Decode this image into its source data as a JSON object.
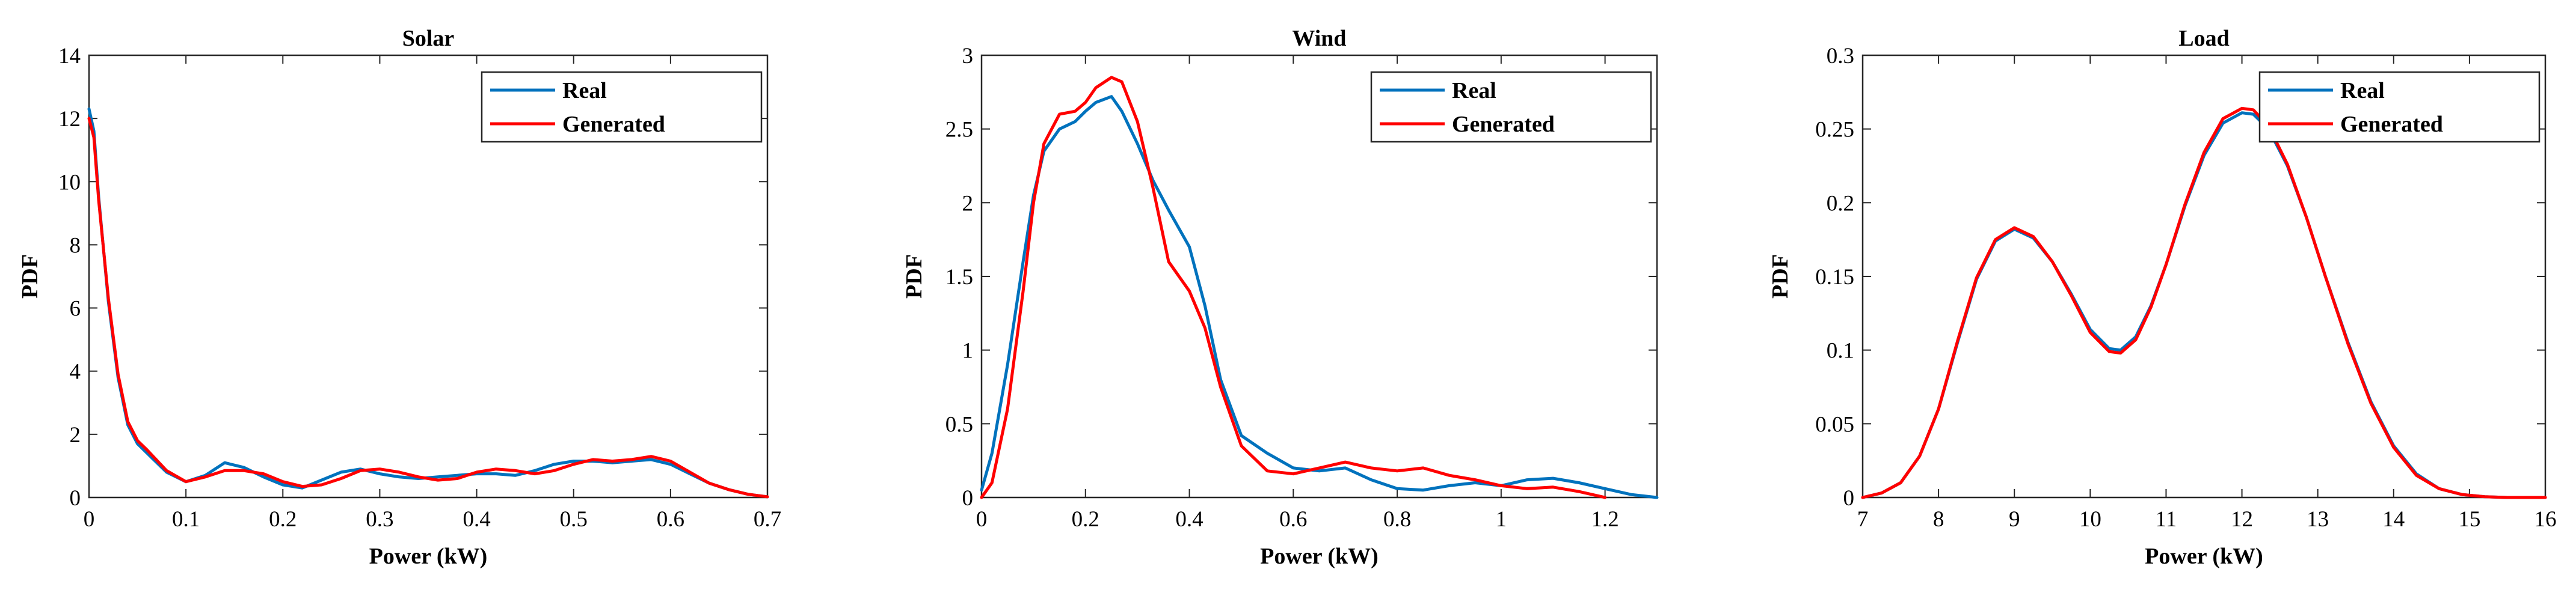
{
  "chart_data": [
    {
      "type": "line",
      "title": "Solar",
      "xlabel": "Power (kW)",
      "ylabel": "PDF",
      "xlim": [
        0,
        0.7
      ],
      "ylim": [
        0,
        14
      ],
      "xticks": [
        0,
        0.1,
        0.2,
        0.3,
        0.4,
        0.5,
        0.6,
        0.7
      ],
      "yticks": [
        0,
        2,
        4,
        6,
        8,
        10,
        12,
        14
      ],
      "xtick_labels": [
        "0",
        "0.1",
        "0.2",
        "0.3",
        "0.4",
        "0.5",
        "0.6",
        "0.7"
      ],
      "ytick_labels": [
        "0",
        "2",
        "4",
        "6",
        "8",
        "10",
        "12",
        "14"
      ],
      "grid": false,
      "legend_position": "top-right",
      "series": [
        {
          "name": "Real",
          "color": "#0072BD",
          "x": [
            0,
            0.005,
            0.01,
            0.02,
            0.03,
            0.04,
            0.05,
            0.06,
            0.08,
            0.1,
            0.12,
            0.14,
            0.16,
            0.18,
            0.2,
            0.22,
            0.24,
            0.26,
            0.28,
            0.3,
            0.32,
            0.34,
            0.36,
            0.38,
            0.4,
            0.42,
            0.44,
            0.46,
            0.48,
            0.5,
            0.52,
            0.54,
            0.56,
            0.58,
            0.6,
            0.62,
            0.64,
            0.66,
            0.68,
            0.7
          ],
          "y": [
            12.3,
            11.6,
            9.5,
            6.2,
            3.8,
            2.3,
            1.7,
            1.4,
            0.8,
            0.5,
            0.7,
            1.1,
            0.95,
            0.65,
            0.4,
            0.3,
            0.55,
            0.8,
            0.9,
            0.75,
            0.65,
            0.6,
            0.65,
            0.7,
            0.75,
            0.75,
            0.7,
            0.85,
            1.05,
            1.15,
            1.15,
            1.1,
            1.15,
            1.2,
            1.05,
            0.75,
            0.45,
            0.25,
            0.1,
            0.02
          ]
        },
        {
          "name": "Generated",
          "color": "#FF0000",
          "x": [
            0,
            0.005,
            0.01,
            0.02,
            0.03,
            0.04,
            0.05,
            0.06,
            0.08,
            0.1,
            0.12,
            0.14,
            0.16,
            0.18,
            0.2,
            0.22,
            0.24,
            0.26,
            0.28,
            0.3,
            0.32,
            0.34,
            0.36,
            0.38,
            0.4,
            0.42,
            0.44,
            0.46,
            0.48,
            0.5,
            0.52,
            0.54,
            0.56,
            0.58,
            0.6,
            0.62,
            0.64,
            0.66,
            0.68,
            0.7
          ],
          "y": [
            12.0,
            11.4,
            9.4,
            6.3,
            3.9,
            2.4,
            1.8,
            1.5,
            0.85,
            0.5,
            0.65,
            0.85,
            0.85,
            0.75,
            0.5,
            0.35,
            0.4,
            0.6,
            0.85,
            0.9,
            0.8,
            0.65,
            0.55,
            0.6,
            0.8,
            0.9,
            0.85,
            0.75,
            0.85,
            1.05,
            1.2,
            1.15,
            1.2,
            1.3,
            1.15,
            0.8,
            0.45,
            0.25,
            0.1,
            0.02
          ]
        }
      ]
    },
    {
      "type": "line",
      "title": "Wind",
      "xlabel": "Power (kW)",
      "ylabel": "PDF",
      "xlim": [
        0,
        1.3
      ],
      "ylim": [
        0,
        3
      ],
      "xticks": [
        0,
        0.2,
        0.4,
        0.6,
        0.8,
        1,
        1.2
      ],
      "yticks": [
        0,
        0.5,
        1,
        1.5,
        2,
        2.5,
        3
      ],
      "xtick_labels": [
        "0",
        "0.2",
        "0.4",
        "0.6",
        "0.8",
        "1",
        "1.2"
      ],
      "ytick_labels": [
        "0",
        "0.5",
        "1",
        "1.5",
        "2",
        "2.5",
        "3"
      ],
      "grid": false,
      "legend_position": "top-right",
      "series": [
        {
          "name": "Real",
          "color": "#0072BD",
          "x": [
            0,
            0.02,
            0.05,
            0.08,
            0.1,
            0.12,
            0.15,
            0.18,
            0.2,
            0.22,
            0.25,
            0.27,
            0.3,
            0.33,
            0.36,
            0.4,
            0.43,
            0.46,
            0.5,
            0.55,
            0.6,
            0.65,
            0.7,
            0.75,
            0.8,
            0.85,
            0.9,
            0.95,
            1.0,
            1.05,
            1.1,
            1.15,
            1.2,
            1.25,
            1.3
          ],
          "y": [
            0.05,
            0.3,
            0.9,
            1.6,
            2.05,
            2.35,
            2.5,
            2.55,
            2.62,
            2.68,
            2.72,
            2.62,
            2.4,
            2.15,
            1.95,
            1.7,
            1.3,
            0.8,
            0.42,
            0.3,
            0.2,
            0.18,
            0.2,
            0.12,
            0.06,
            0.05,
            0.08,
            0.1,
            0.08,
            0.12,
            0.13,
            0.1,
            0.06,
            0.02,
            0.0
          ]
        },
        {
          "name": "Generated",
          "color": "#FF0000",
          "x": [
            0,
            0.02,
            0.05,
            0.08,
            0.1,
            0.12,
            0.15,
            0.18,
            0.2,
            0.22,
            0.25,
            0.27,
            0.3,
            0.33,
            0.36,
            0.4,
            0.43,
            0.46,
            0.5,
            0.55,
            0.6,
            0.65,
            0.7,
            0.75,
            0.8,
            0.85,
            0.9,
            0.95,
            1.0,
            1.05,
            1.1,
            1.15,
            1.2
          ],
          "y": [
            0.0,
            0.1,
            0.6,
            1.4,
            2.0,
            2.4,
            2.6,
            2.62,
            2.68,
            2.78,
            2.85,
            2.82,
            2.55,
            2.1,
            1.6,
            1.4,
            1.15,
            0.75,
            0.35,
            0.18,
            0.16,
            0.2,
            0.24,
            0.2,
            0.18,
            0.2,
            0.15,
            0.12,
            0.08,
            0.06,
            0.07,
            0.04,
            0.0
          ]
        }
      ]
    },
    {
      "type": "line",
      "title": "Load",
      "xlabel": "Power (kW)",
      "ylabel": "PDF",
      "xlim": [
        7,
        16
      ],
      "ylim": [
        0,
        0.3
      ],
      "xticks": [
        7,
        8,
        9,
        10,
        11,
        12,
        13,
        14,
        15,
        16
      ],
      "yticks": [
        0,
        0.05,
        0.1,
        0.15,
        0.2,
        0.25,
        0.3
      ],
      "xtick_labels": [
        "7",
        "8",
        "9",
        "10",
        "11",
        "12",
        "13",
        "14",
        "15",
        "16"
      ],
      "ytick_labels": [
        "0",
        "0.05",
        "0.1",
        "0.15",
        "0.2",
        "0.25",
        "0.3"
      ],
      "grid": false,
      "legend_position": "top-right",
      "series": [
        {
          "name": "Real",
          "color": "#0072BD",
          "x": [
            7.0,
            7.25,
            7.5,
            7.75,
            8.0,
            8.25,
            8.5,
            8.75,
            9.0,
            9.25,
            9.5,
            9.75,
            10.0,
            10.25,
            10.4,
            10.6,
            10.8,
            11.0,
            11.25,
            11.5,
            11.75,
            12.0,
            12.15,
            12.35,
            12.6,
            12.85,
            13.1,
            13.4,
            13.7,
            14.0,
            14.3,
            14.6,
            14.9,
            15.2,
            15.5,
            16.0
          ],
          "y": [
            0.0,
            0.003,
            0.01,
            0.028,
            0.06,
            0.105,
            0.148,
            0.174,
            0.182,
            0.176,
            0.16,
            0.138,
            0.114,
            0.101,
            0.1,
            0.109,
            0.13,
            0.158,
            0.198,
            0.232,
            0.254,
            0.261,
            0.26,
            0.25,
            0.225,
            0.19,
            0.15,
            0.105,
            0.065,
            0.035,
            0.016,
            0.006,
            0.002,
            0.0005,
            0.0,
            0.0
          ]
        },
        {
          "name": "Generated",
          "color": "#FF0000",
          "x": [
            7.0,
            7.25,
            7.5,
            7.75,
            8.0,
            8.25,
            8.5,
            8.75,
            9.0,
            9.25,
            9.5,
            9.75,
            10.0,
            10.25,
            10.4,
            10.6,
            10.8,
            11.0,
            11.25,
            11.5,
            11.75,
            12.0,
            12.15,
            12.35,
            12.6,
            12.85,
            13.1,
            13.4,
            13.7,
            14.0,
            14.3,
            14.6,
            14.9,
            15.2,
            15.5,
            16.0
          ],
          "y": [
            0.0,
            0.003,
            0.01,
            0.028,
            0.06,
            0.106,
            0.149,
            0.175,
            0.183,
            0.177,
            0.16,
            0.137,
            0.112,
            0.099,
            0.098,
            0.107,
            0.129,
            0.158,
            0.199,
            0.234,
            0.257,
            0.264,
            0.263,
            0.252,
            0.226,
            0.19,
            0.15,
            0.104,
            0.064,
            0.034,
            0.015,
            0.006,
            0.002,
            0.0005,
            0.0,
            0.0
          ]
        }
      ]
    }
  ]
}
